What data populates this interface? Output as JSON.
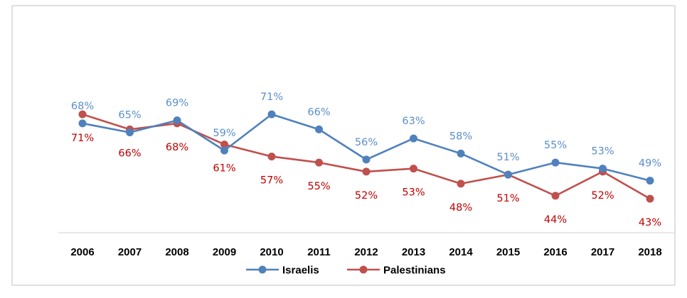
{
  "chart_data": {
    "type": "line",
    "title": "",
    "xlabel": "",
    "ylabel": "",
    "ylim": [
      20,
      90
    ],
    "grid": false,
    "legend_position": "bottom",
    "categories": [
      "2006",
      "2007",
      "2008",
      "2009",
      "2010",
      "2011",
      "2012",
      "2013",
      "2014",
      "2015",
      "2016",
      "2017",
      "2018"
    ],
    "series": [
      {
        "name": "Israelis",
        "color": "#4f81bd",
        "label_color": "#5b8fc9",
        "values": [
          68,
          65,
          69,
          59,
          71,
          66,
          56,
          63,
          58,
          51,
          55,
          53,
          49
        ],
        "labels": [
          "68%",
          "65%",
          "69%",
          "59%",
          "71%",
          "66%",
          "56%",
          "63%",
          "58%",
          "51%",
          "55%",
          "53%",
          "49%"
        ]
      },
      {
        "name": "Palestinians",
        "color": "#c0504d",
        "label_color": "#c00000",
        "values": [
          71,
          66,
          68,
          61,
          57,
          55,
          52,
          53,
          48,
          51,
          44,
          52,
          43
        ],
        "labels": [
          "71%",
          "66%",
          "68%",
          "61%",
          "57%",
          "55%",
          "52%",
          "53%",
          "48%",
          "51%",
          "44%",
          "52%",
          "43%"
        ]
      }
    ]
  }
}
